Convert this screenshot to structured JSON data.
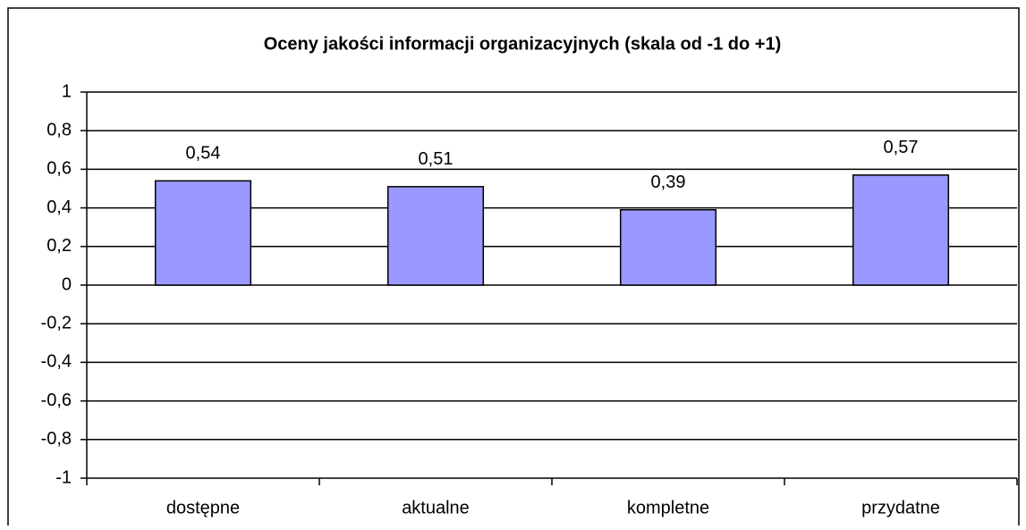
{
  "chart_data": {
    "type": "bar",
    "title": "Oceny jakości informacji organizacyjnych (skala od -1 do +1)",
    "categories": [
      "dostępne",
      "aktualne",
      "kompletne",
      "przydatne"
    ],
    "values": [
      0.54,
      0.51,
      0.39,
      0.57
    ],
    "value_labels": [
      "0,54",
      "0,51",
      "0,39",
      "0,57"
    ],
    "color": "#9999ff",
    "ylim": [
      -1,
      1
    ],
    "yticks": [
      -1,
      {
        "value": -0.8,
        "label": "-0,8"
      },
      {
        "value": -0.6,
        "label": "-0,6"
      },
      {
        "value": -0.4,
        "label": "-0,4"
      },
      {
        "value": -0.2,
        "label": "-0,2"
      },
      0,
      {
        "value": 0.2,
        "label": "0,2"
      },
      {
        "value": 0.4,
        "label": "0,4"
      },
      {
        "value": 0.6,
        "label": "0,6"
      },
      {
        "value": 0.8,
        "label": "0,8"
      },
      1
    ],
    "grid": true
  }
}
